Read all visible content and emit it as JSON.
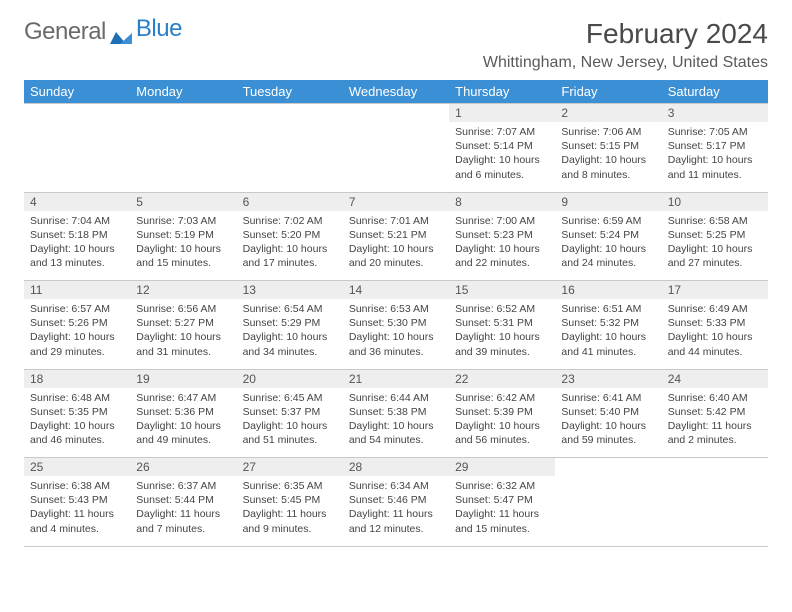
{
  "branding": {
    "logo_text_1": "General",
    "logo_text_2": "Blue",
    "logo_color_1": "#6a6a6a",
    "logo_color_2": "#2a7fc9",
    "logo_mark_color": "#1f6fb5"
  },
  "header": {
    "month_title": "February 2024",
    "location": "Whittingham, New Jersey, United States"
  },
  "colors": {
    "header_bg": "#3b8fd4",
    "header_fg": "#ffffff",
    "daynum_bg": "#eeeeee",
    "border": "#c9c9c9",
    "text": "#444444"
  },
  "calendar": {
    "day_names": [
      "Sunday",
      "Monday",
      "Tuesday",
      "Wednesday",
      "Thursday",
      "Friday",
      "Saturday"
    ],
    "first_weekday_index": 4,
    "days": [
      {
        "n": 1,
        "sunrise": "7:07 AM",
        "sunset": "5:14 PM",
        "daylight": "10 hours and 6 minutes."
      },
      {
        "n": 2,
        "sunrise": "7:06 AM",
        "sunset": "5:15 PM",
        "daylight": "10 hours and 8 minutes."
      },
      {
        "n": 3,
        "sunrise": "7:05 AM",
        "sunset": "5:17 PM",
        "daylight": "10 hours and 11 minutes."
      },
      {
        "n": 4,
        "sunrise": "7:04 AM",
        "sunset": "5:18 PM",
        "daylight": "10 hours and 13 minutes."
      },
      {
        "n": 5,
        "sunrise": "7:03 AM",
        "sunset": "5:19 PM",
        "daylight": "10 hours and 15 minutes."
      },
      {
        "n": 6,
        "sunrise": "7:02 AM",
        "sunset": "5:20 PM",
        "daylight": "10 hours and 17 minutes."
      },
      {
        "n": 7,
        "sunrise": "7:01 AM",
        "sunset": "5:21 PM",
        "daylight": "10 hours and 20 minutes."
      },
      {
        "n": 8,
        "sunrise": "7:00 AM",
        "sunset": "5:23 PM",
        "daylight": "10 hours and 22 minutes."
      },
      {
        "n": 9,
        "sunrise": "6:59 AM",
        "sunset": "5:24 PM",
        "daylight": "10 hours and 24 minutes."
      },
      {
        "n": 10,
        "sunrise": "6:58 AM",
        "sunset": "5:25 PM",
        "daylight": "10 hours and 27 minutes."
      },
      {
        "n": 11,
        "sunrise": "6:57 AM",
        "sunset": "5:26 PM",
        "daylight": "10 hours and 29 minutes."
      },
      {
        "n": 12,
        "sunrise": "6:56 AM",
        "sunset": "5:27 PM",
        "daylight": "10 hours and 31 minutes."
      },
      {
        "n": 13,
        "sunrise": "6:54 AM",
        "sunset": "5:29 PM",
        "daylight": "10 hours and 34 minutes."
      },
      {
        "n": 14,
        "sunrise": "6:53 AM",
        "sunset": "5:30 PM",
        "daylight": "10 hours and 36 minutes."
      },
      {
        "n": 15,
        "sunrise": "6:52 AM",
        "sunset": "5:31 PM",
        "daylight": "10 hours and 39 minutes."
      },
      {
        "n": 16,
        "sunrise": "6:51 AM",
        "sunset": "5:32 PM",
        "daylight": "10 hours and 41 minutes."
      },
      {
        "n": 17,
        "sunrise": "6:49 AM",
        "sunset": "5:33 PM",
        "daylight": "10 hours and 44 minutes."
      },
      {
        "n": 18,
        "sunrise": "6:48 AM",
        "sunset": "5:35 PM",
        "daylight": "10 hours and 46 minutes."
      },
      {
        "n": 19,
        "sunrise": "6:47 AM",
        "sunset": "5:36 PM",
        "daylight": "10 hours and 49 minutes."
      },
      {
        "n": 20,
        "sunrise": "6:45 AM",
        "sunset": "5:37 PM",
        "daylight": "10 hours and 51 minutes."
      },
      {
        "n": 21,
        "sunrise": "6:44 AM",
        "sunset": "5:38 PM",
        "daylight": "10 hours and 54 minutes."
      },
      {
        "n": 22,
        "sunrise": "6:42 AM",
        "sunset": "5:39 PM",
        "daylight": "10 hours and 56 minutes."
      },
      {
        "n": 23,
        "sunrise": "6:41 AM",
        "sunset": "5:40 PM",
        "daylight": "10 hours and 59 minutes."
      },
      {
        "n": 24,
        "sunrise": "6:40 AM",
        "sunset": "5:42 PM",
        "daylight": "11 hours and 2 minutes."
      },
      {
        "n": 25,
        "sunrise": "6:38 AM",
        "sunset": "5:43 PM",
        "daylight": "11 hours and 4 minutes."
      },
      {
        "n": 26,
        "sunrise": "6:37 AM",
        "sunset": "5:44 PM",
        "daylight": "11 hours and 7 minutes."
      },
      {
        "n": 27,
        "sunrise": "6:35 AM",
        "sunset": "5:45 PM",
        "daylight": "11 hours and 9 minutes."
      },
      {
        "n": 28,
        "sunrise": "6:34 AM",
        "sunset": "5:46 PM",
        "daylight": "11 hours and 12 minutes."
      },
      {
        "n": 29,
        "sunrise": "6:32 AM",
        "sunset": "5:47 PM",
        "daylight": "11 hours and 15 minutes."
      }
    ],
    "labels": {
      "sunrise_prefix": "Sunrise: ",
      "sunset_prefix": "Sunset: ",
      "daylight_prefix": "Daylight: "
    }
  }
}
